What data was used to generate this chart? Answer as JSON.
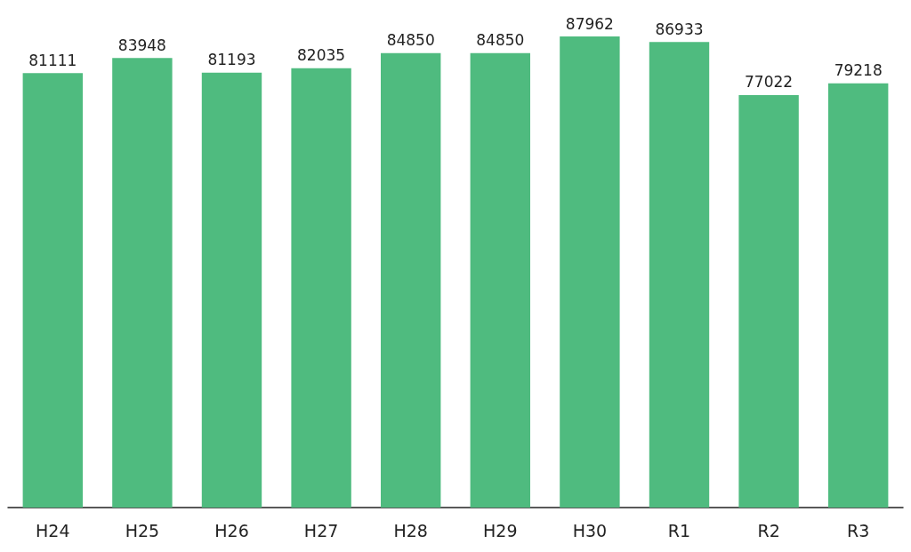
{
  "chart_data": {
    "type": "bar",
    "categories": [
      "H24",
      "H25",
      "H26",
      "H27",
      "H28",
      "H29",
      "H30",
      "R1",
      "R2",
      "R3"
    ],
    "values": [
      81111,
      83948,
      81193,
      82035,
      84850,
      84850,
      87962,
      86933,
      77022,
      79218
    ],
    "color": "#4fbb7f",
    "data_labels": true
  }
}
